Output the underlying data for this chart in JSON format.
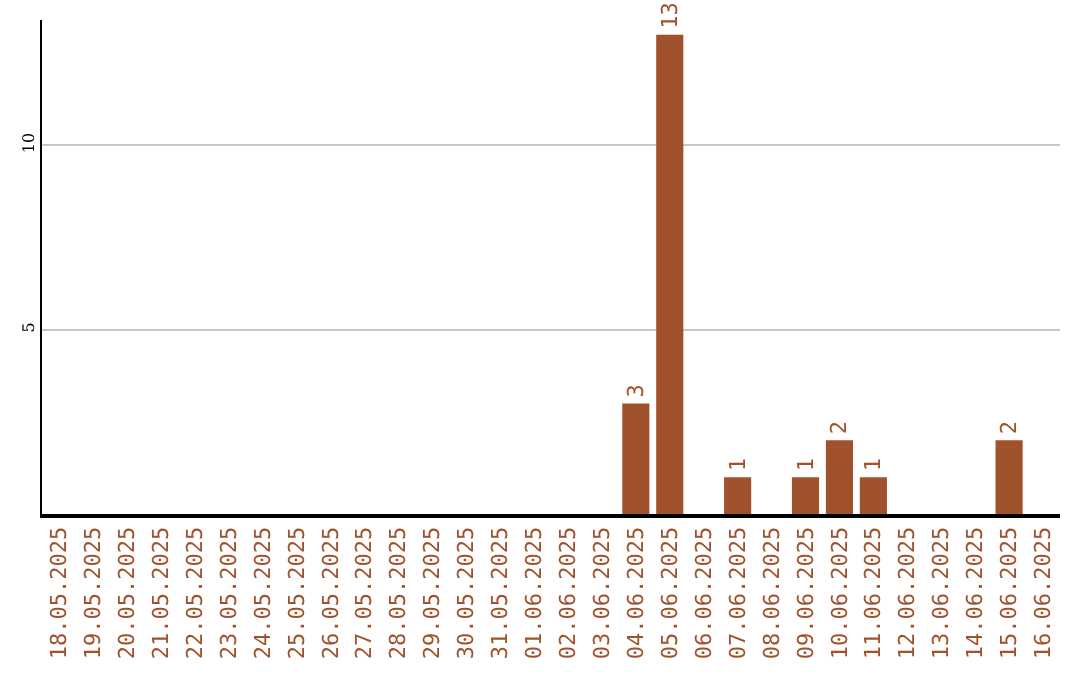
{
  "chart_data": {
    "type": "bar",
    "categories": [
      "18.05.2025",
      "19.05.2025",
      "20.05.2025",
      "21.05.2025",
      "22.05.2025",
      "23.05.2025",
      "24.05.2025",
      "25.05.2025",
      "26.05.2025",
      "27.05.2025",
      "28.05.2025",
      "29.05.2025",
      "30.05.2025",
      "31.05.2025",
      "01.06.2025",
      "02.06.2025",
      "03.06.2025",
      "04.06.2025",
      "05.06.2025",
      "06.06.2025",
      "07.06.2025",
      "08.06.2025",
      "09.06.2025",
      "10.06.2025",
      "11.06.2025",
      "12.06.2025",
      "13.06.2025",
      "14.06.2025",
      "15.06.2025",
      "16.06.2025"
    ],
    "values": [
      0,
      0,
      0,
      0,
      0,
      0,
      0,
      0,
      0,
      0,
      0,
      0,
      0,
      0,
      0,
      0,
      0,
      3,
      13,
      0,
      1,
      0,
      1,
      2,
      1,
      0,
      0,
      0,
      2,
      0
    ],
    "value_labels": [
      null,
      null,
      null,
      null,
      null,
      null,
      null,
      null,
      null,
      null,
      null,
      null,
      null,
      null,
      null,
      null,
      null,
      "3",
      "13",
      null,
      "1",
      null,
      "1",
      "2",
      "1",
      null,
      null,
      null,
      "2",
      null
    ],
    "color": "#a0522d",
    "ylim": [
      0,
      13.4
    ],
    "yticks": [
      5,
      10
    ],
    "grid": "y",
    "legend": false
  }
}
